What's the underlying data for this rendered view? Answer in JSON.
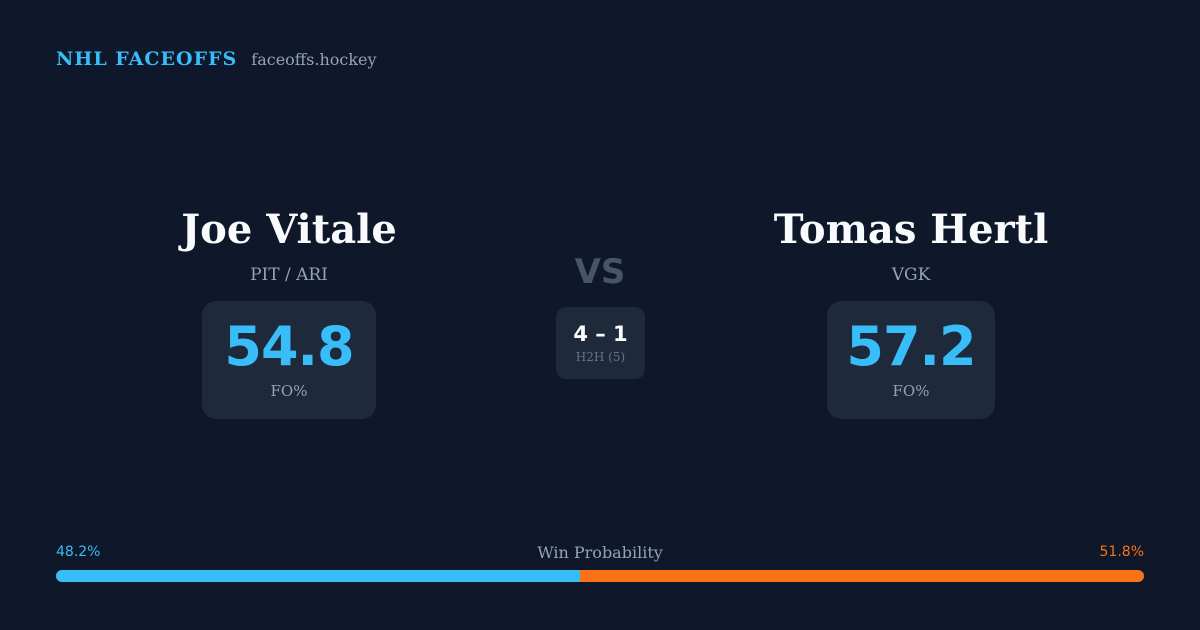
{
  "header": {
    "brand": "NHL FACEOFFS",
    "site": "faceoffs.hockey"
  },
  "player_left": {
    "name": "Joe Vitale",
    "team": "PIT / ARI",
    "stat_value": "54.8",
    "stat_label": "FO%"
  },
  "player_right": {
    "name": "Tomas Hertl",
    "team": "VGK",
    "stat_value": "57.2",
    "stat_label": "FO%"
  },
  "matchup": {
    "vs_label": "VS",
    "h2h_score": "4 – 1",
    "h2h_label": "H2H (5)"
  },
  "win_probability": {
    "title": "Win Probability",
    "left_label": "48.2%",
    "right_label": "51.8%",
    "left_value": 48.2,
    "right_value": 51.8
  },
  "colors": {
    "background": "#0f172a",
    "card": "#1e293b",
    "accent_left": "#38bdf8",
    "accent_right": "#f97316"
  }
}
